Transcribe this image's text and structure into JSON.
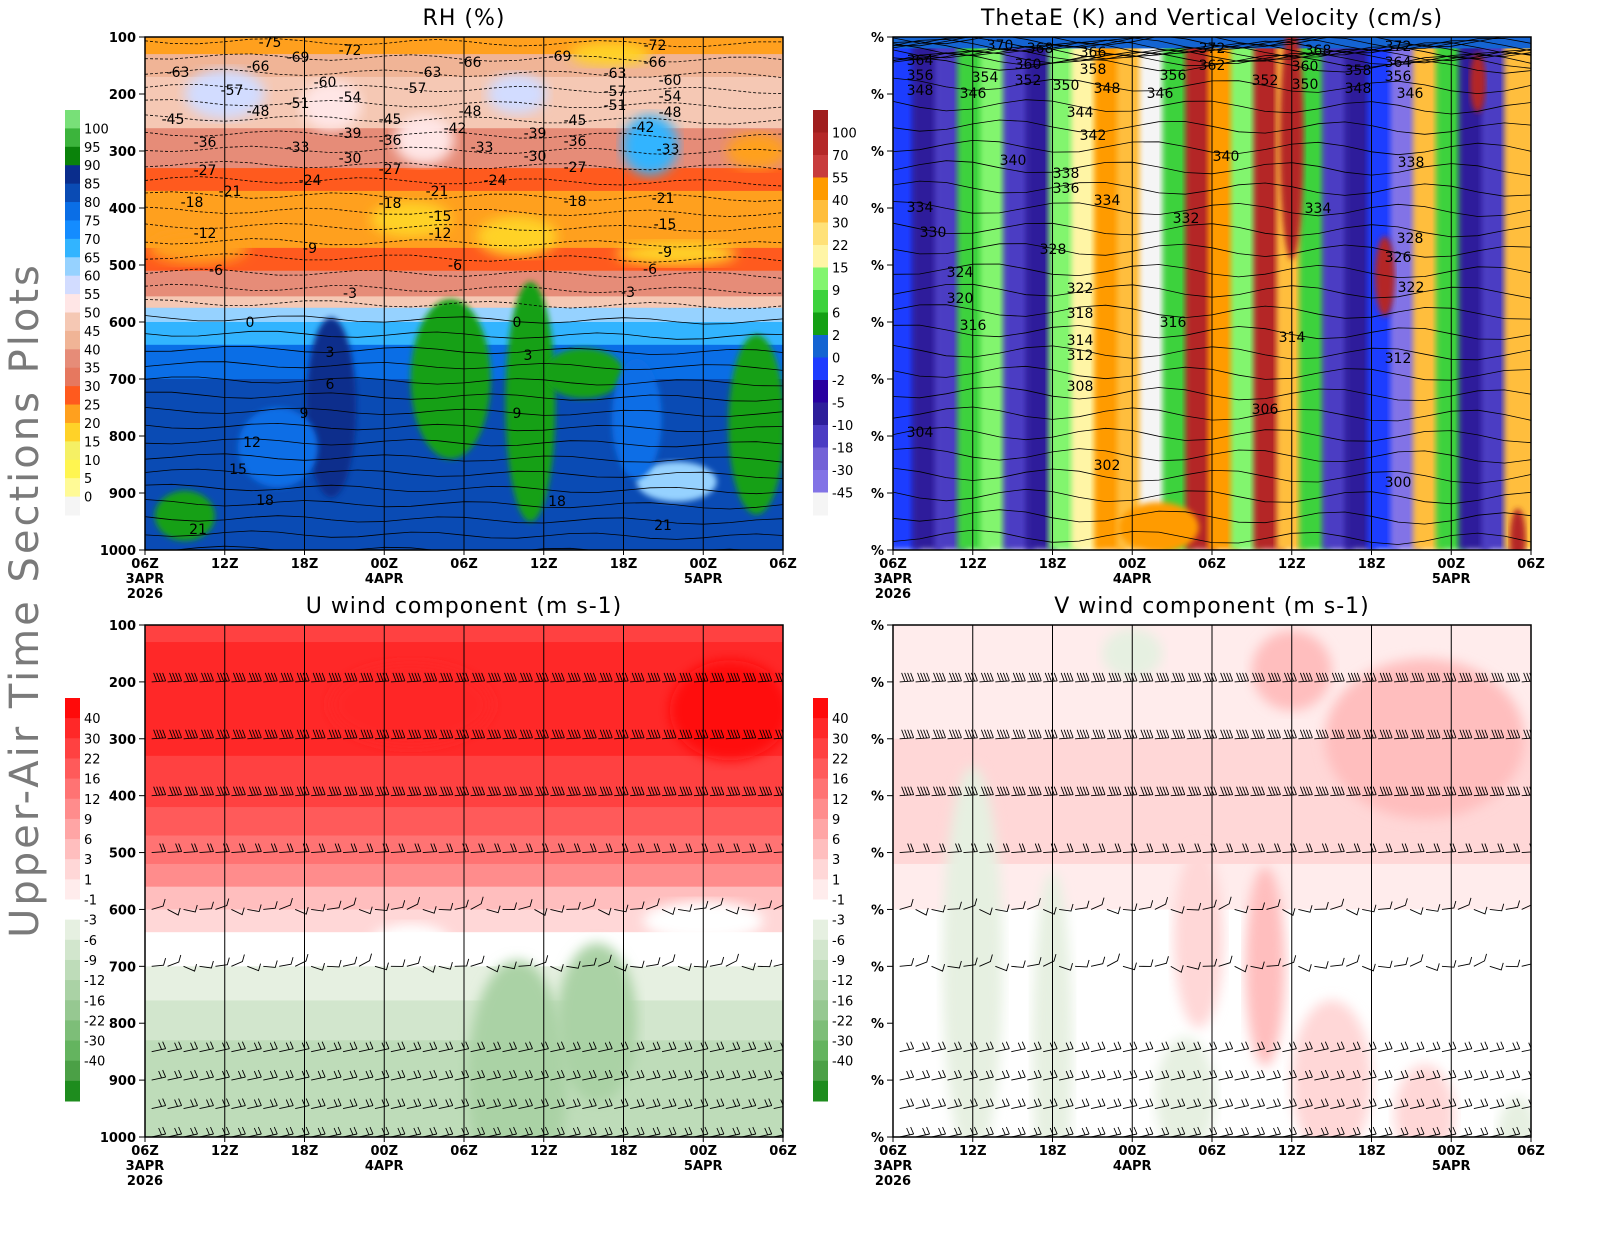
{
  "side_title": "Upper-Air Time Sections Plots",
  "x_ticks": [
    "06Z",
    "12Z",
    "18Z",
    "00Z",
    "06Z",
    "12Z",
    "18Z",
    "00Z",
    "06Z"
  ],
  "x_date_labels": [
    {
      "tick": 0,
      "lines": [
        "3APR",
        "2026"
      ]
    },
    {
      "tick": 3,
      "lines": [
        "4APR"
      ]
    },
    {
      "tick": 7,
      "lines": [
        "5APR"
      ]
    }
  ],
  "chart_data": [
    {
      "type": "heatmap",
      "title": "RH (%)",
      "y_ticks": [
        "100",
        "200",
        "300",
        "400",
        "500",
        "600",
        "700",
        "800",
        "900",
        "1000"
      ],
      "ylim": [
        1000,
        100
      ],
      "xlim": [
        "06Z 3APR 2026",
        "06Z 5APR 2026"
      ],
      "colorbar": {
        "labels": [
          "100",
          "95",
          "90",
          "85",
          "80",
          "75",
          "70",
          "65",
          "60",
          "55",
          "50",
          "45",
          "40",
          "35",
          "30",
          "25",
          "20",
          "15",
          "10",
          "5",
          "0"
        ],
        "colors": [
          "#78e078",
          "#3cb43c",
          "#0a820a",
          "#0a2d8c",
          "#0a4bb4",
          "#0a6ee6",
          "#148cff",
          "#32b4ff",
          "#96d2ff",
          "#d2dcff",
          "#ffe6e6",
          "#f5c8b4",
          "#f0b496",
          "#e68c78",
          "#e6785f",
          "#ff5a1e",
          "#ffa01e",
          "#ffd228",
          "#f5f064",
          "#fff550",
          "#fffa96",
          "#f5f5f5"
        ]
      },
      "contour_labels": [
        "-75",
        "-63",
        "-66",
        "-69",
        "-72",
        "-57",
        "-48",
        "-51",
        "-60",
        "-54",
        "-45",
        "-36",
        "-33",
        "-39",
        "-30",
        "-27",
        "-21",
        "-24",
        "-18",
        "-12",
        "-6",
        "-9",
        "-3",
        "0",
        "3",
        "6",
        "9",
        "12",
        "15",
        "18",
        "21",
        "-45",
        "-36",
        "-27",
        "-18",
        "-63",
        "-66",
        "-57",
        "-48",
        "-42",
        "-33",
        "-21",
        "-24",
        "-15",
        "-12",
        "-6",
        "-69",
        "-63",
        "-57",
        "-51",
        "-45",
        "-39",
        "-36",
        "-30",
        "-27",
        "-18",
        "-72",
        "-66",
        "-60",
        "-54",
        "-48",
        "-42",
        "-33",
        "-21",
        "-15",
        "-9",
        "-6",
        "-3",
        "0",
        "3",
        "9",
        "18",
        "21"
      ]
    },
    {
      "type": "heatmap",
      "title": "ThetaE (K) and Vertical Velocity (cm/s)",
      "y_ticks": [
        "%",
        "%",
        "%",
        "%",
        "%",
        "%",
        "%",
        "%",
        "%",
        "%"
      ],
      "xlim": [
        "06Z 3APR 2026",
        "06Z 5APR 2026"
      ],
      "colorbar": {
        "labels": [
          "100",
          "70",
          "55",
          "40",
          "30",
          "22",
          "15",
          "9",
          "6",
          "2",
          "0",
          "-2",
          "-5",
          "-10",
          "-18",
          "-30",
          "-45"
        ],
        "colors": [
          "#a01e1e",
          "#b42828",
          "#c83c3c",
          "#ff9b00",
          "#ffbe3c",
          "#ffe178",
          "#fff5a5",
          "#82f56e",
          "#3cd23c",
          "#14a014",
          "#1464d2",
          "#1e3cff",
          "#2800a0",
          "#2d1e9b",
          "#4b3cc3",
          "#7362d7",
          "#8273e6",
          "#f5f5f5"
        ]
      },
      "contour_labels": [
        "364",
        "370",
        "368",
        "366",
        "356",
        "360",
        "358",
        "354",
        "352",
        "350",
        "348",
        "346",
        "348",
        "356",
        "346",
        "372",
        "362",
        "352",
        "368",
        "360",
        "350",
        "358",
        "348",
        "372",
        "364",
        "356",
        "346",
        "344",
        "342",
        "340",
        "338",
        "336",
        "334",
        "340",
        "338",
        "334",
        "330",
        "332",
        "334",
        "328",
        "328",
        "326",
        "324",
        "322",
        "322",
        "320",
        "318",
        "316",
        "316",
        "314",
        "314",
        "312",
        "312",
        "308",
        "306",
        "304",
        "302",
        "300"
      ]
    },
    {
      "type": "heatmap",
      "title": "U wind component (m s-1)",
      "y_ticks": [
        "100",
        "200",
        "300",
        "400",
        "500",
        "600",
        "700",
        "800",
        "900",
        "1000"
      ],
      "ylim": [
        1000,
        100
      ],
      "xlim": [
        "06Z 3APR 2026",
        "06Z 5APR 2026"
      ],
      "colorbar": {
        "labels": [
          "40",
          "30",
          "22",
          "16",
          "12",
          "9",
          "6",
          "3",
          "1",
          "-1",
          "-3",
          "-6",
          "-9",
          "-12",
          "-16",
          "-22",
          "-30",
          "-40"
        ],
        "colors": [
          "#ff0a0a",
          "#ff2828",
          "#ff4141",
          "#ff5a5a",
          "#ff7373",
          "#ff8c8c",
          "#ffa5a5",
          "#ffbebe",
          "#ffd7d7",
          "#ffecec",
          "#ffffff",
          "#e6f0e1",
          "#d2e6cd",
          "#bedcb9",
          "#aad2a5",
          "#96c891",
          "#7dbe78",
          "#64b45f",
          "#4ba046",
          "#1e8c1e"
        ]
      },
      "barb_levels": [
        100,
        200,
        300,
        400,
        500,
        600,
        700,
        850,
        900,
        950,
        1000
      ]
    },
    {
      "type": "heatmap",
      "title": "V wind component (m s-1)",
      "y_ticks": [
        "%",
        "%",
        "%",
        "%",
        "%",
        "%",
        "%",
        "%",
        "%",
        "%"
      ],
      "xlim": [
        "06Z 3APR 2026",
        "06Z 5APR 2026"
      ],
      "colorbar": {
        "labels": [
          "40",
          "30",
          "22",
          "16",
          "12",
          "9",
          "6",
          "3",
          "1",
          "-1",
          "-3",
          "-6",
          "-9",
          "-12",
          "-16",
          "-22",
          "-30",
          "-40"
        ],
        "colors": [
          "#ff0a0a",
          "#ff2828",
          "#ff4141",
          "#ff5a5a",
          "#ff7373",
          "#ff8c8c",
          "#ffa5a5",
          "#ffbebe",
          "#ffd7d7",
          "#ffecec",
          "#ffffff",
          "#e6f0e1",
          "#d2e6cd",
          "#bedcb9",
          "#aad2a5",
          "#96c891",
          "#7dbe78",
          "#64b45f",
          "#4ba046",
          "#1e8c1e"
        ]
      },
      "barb_levels": [
        100,
        200,
        300,
        400,
        500,
        600,
        700,
        850,
        900,
        950,
        1000
      ]
    }
  ]
}
